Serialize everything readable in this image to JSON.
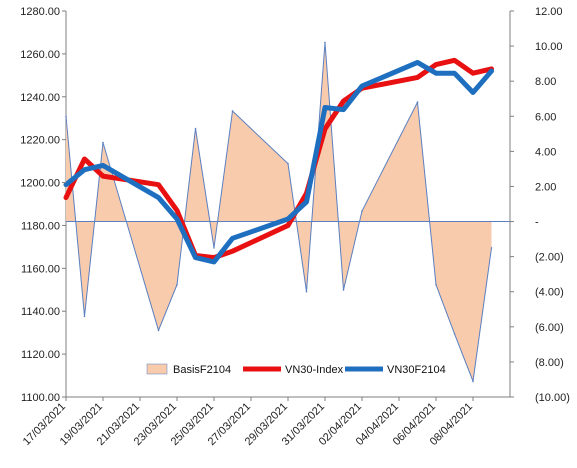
{
  "chart_data": {
    "type": "line",
    "x": [
      "17/03/2021",
      "18/03/2021",
      "19/03/2021",
      "22/03/2021",
      "23/03/2021",
      "24/03/2021",
      "25/03/2021",
      "26/03/2021",
      "29/03/2021",
      "30/03/2021",
      "31/03/2021",
      "01/04/2021",
      "02/04/2021",
      "05/04/2021",
      "06/04/2021",
      "07/04/2021",
      "08/04/2021",
      "09/04/2021"
    ],
    "x_dates": [
      "17/03/2021",
      "18/03/2021",
      "19/03/2021",
      "22/03/2021",
      "23/03/2021",
      "24/03/2021",
      "25/03/2021",
      "26/03/2021",
      "29/03/2021",
      "30/03/2021",
      "31/03/2021",
      "01/04/2021",
      "02/04/2021",
      "05/04/2021",
      "06/04/2021",
      "07/04/2021",
      "08/04/2021",
      "09/04/2021"
    ],
    "x_tick_labels": [
      "17/03/2021",
      "19/03/2021",
      "21/03/2021",
      "23/03/2021",
      "25/03/2021",
      "27/03/2021",
      "29/03/2021",
      "31/03/2021",
      "02/04/2021",
      "04/04/2021",
      "06/04/2021",
      "08/04/2021"
    ],
    "left_axis": {
      "ylim": [
        1100,
        1280
      ],
      "ticks": [
        "1100.00",
        "1120.00",
        "1140.00",
        "1160.00",
        "1180.00",
        "1200.00",
        "1220.00",
        "1240.00",
        "1260.00",
        "1280.00"
      ]
    },
    "right_axis": {
      "ylim": [
        -10,
        12
      ],
      "ticks": [
        "(10.00)",
        "(8.00)",
        "(6.00)",
        "(4.00)",
        "(2.00)",
        "-",
        "2.00",
        "4.00",
        "6.00",
        "8.00",
        "10.00",
        "12.00"
      ]
    },
    "series": [
      {
        "name": "BasisF2104",
        "type": "area",
        "axis": "right",
        "color": "#f8cbad",
        "line_color": "#5b7fc0",
        "values": [
          6.0,
          -5.4,
          4.5,
          -6.2,
          -3.6,
          5.3,
          -1.5,
          6.3,
          3.3,
          -4.0,
          10.2,
          -3.9,
          0.6,
          6.8,
          -3.6,
          -6.4,
          -9.1,
          -1.5
        ]
      },
      {
        "name": "VN30-Index",
        "type": "line",
        "axis": "left",
        "color": "#e81010",
        "values": [
          1193,
          1211,
          1203,
          1199,
          1187,
          1166,
          1165,
          1168,
          1180,
          1195,
          1225,
          1238,
          1244,
          1249,
          1255,
          1257,
          1251,
          1253
        ]
      },
      {
        "name": "VN30F2104",
        "type": "line",
        "axis": "left",
        "color": "#1f6fc0",
        "values": [
          1199,
          1206,
          1208,
          1193,
          1183,
          1165,
          1163,
          1174,
          1183,
          1191,
          1235,
          1234,
          1245,
          1256,
          1251,
          1251,
          1242,
          1252
        ]
      }
    ],
    "legend": [
      "BasisF2104",
      "VN30-Index",
      "VN30F2104"
    ],
    "legend_position": "bottom-center-inside",
    "grid": false
  }
}
